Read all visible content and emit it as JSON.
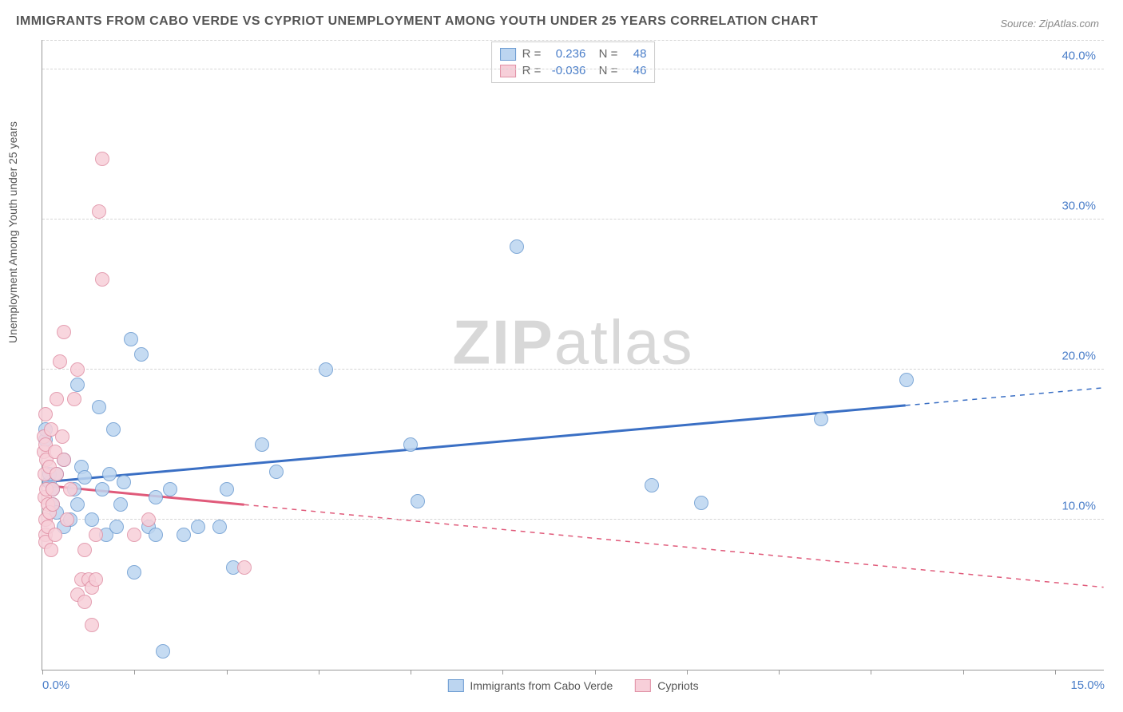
{
  "title": "IMMIGRANTS FROM CABO VERDE VS CYPRIOT UNEMPLOYMENT AMONG YOUTH UNDER 25 YEARS CORRELATION CHART",
  "source": "Source: ZipAtlas.com",
  "watermark_a": "ZIP",
  "watermark_b": "atlas",
  "chart": {
    "type": "scatter",
    "ylabel": "Unemployment Among Youth under 25 years",
    "xlim": [
      0,
      15
    ],
    "ylim": [
      0,
      42
    ],
    "xtick_positions": [
      0,
      1.3,
      2.6,
      3.9,
      5.2,
      6.5,
      7.8,
      9.1,
      10.4,
      11.7,
      13.0,
      14.3
    ],
    "xtick_labels": {
      "0": "0.0%",
      "15": "15.0%"
    },
    "ytick_positions": [
      10,
      20,
      30,
      40
    ],
    "ytick_labels": {
      "10": "10.0%",
      "20": "20.0%",
      "30": "30.0%",
      "40": "40.0%"
    },
    "grid_color": "#d5d5d5",
    "background_color": "#ffffff",
    "marker_radius": 9,
    "marker_border_width": 1,
    "series": [
      {
        "name": "Immigrants from Cabo Verde",
        "color_fill": "#bcd5f0",
        "color_border": "#6b9bd1",
        "line_color": "#3a6fc4",
        "line_width": 3,
        "R": "0.236",
        "N": "48",
        "trend": {
          "x1": 0,
          "y1": 12.5,
          "x2": 15,
          "y2": 18.8,
          "solid_until": 12.2
        },
        "points": [
          [
            0.05,
            15.3
          ],
          [
            0.05,
            16.0
          ],
          [
            0.1,
            12.5
          ],
          [
            0.1,
            13.0
          ],
          [
            0.15,
            11.0
          ],
          [
            0.15,
            12.0
          ],
          [
            0.2,
            13.0
          ],
          [
            0.2,
            10.5
          ],
          [
            0.3,
            9.5
          ],
          [
            0.3,
            14.0
          ],
          [
            0.4,
            10.0
          ],
          [
            0.45,
            12.0
          ],
          [
            0.5,
            11.0
          ],
          [
            0.5,
            19.0
          ],
          [
            0.55,
            13.5
          ],
          [
            0.6,
            12.8
          ],
          [
            0.7,
            10.0
          ],
          [
            0.8,
            17.5
          ],
          [
            0.85,
            12.0
          ],
          [
            0.9,
            9.0
          ],
          [
            0.95,
            13.0
          ],
          [
            1.0,
            16.0
          ],
          [
            1.05,
            9.5
          ],
          [
            1.1,
            11.0
          ],
          [
            1.15,
            12.5
          ],
          [
            1.25,
            22.0
          ],
          [
            1.3,
            6.5
          ],
          [
            1.4,
            21.0
          ],
          [
            1.5,
            9.5
          ],
          [
            1.6,
            9.0
          ],
          [
            1.6,
            11.5
          ],
          [
            1.7,
            1.2
          ],
          [
            1.8,
            12.0
          ],
          [
            2.0,
            9.0
          ],
          [
            2.2,
            9.5
          ],
          [
            2.5,
            9.5
          ],
          [
            2.6,
            12.0
          ],
          [
            2.7,
            6.8
          ],
          [
            3.1,
            15.0
          ],
          [
            3.3,
            13.2
          ],
          [
            4.0,
            20.0
          ],
          [
            5.2,
            15.0
          ],
          [
            5.3,
            11.2
          ],
          [
            6.7,
            28.2
          ],
          [
            8.6,
            12.3
          ],
          [
            9.3,
            11.1
          ],
          [
            11.0,
            16.7
          ],
          [
            12.2,
            19.3
          ]
        ]
      },
      {
        "name": "Cypriots",
        "color_fill": "#f7cfd9",
        "color_border": "#e090a5",
        "line_color": "#e05a7a",
        "line_width": 3,
        "R": "-0.036",
        "N": "46",
        "trend": {
          "x1": 0,
          "y1": 12.3,
          "x2": 15,
          "y2": 5.5,
          "solid_until": 2.85
        },
        "points": [
          [
            0.02,
            14.5
          ],
          [
            0.02,
            15.5
          ],
          [
            0.03,
            13.0
          ],
          [
            0.03,
            11.5
          ],
          [
            0.04,
            10.0
          ],
          [
            0.04,
            9.0
          ],
          [
            0.05,
            15.0
          ],
          [
            0.05,
            17.0
          ],
          [
            0.05,
            8.5
          ],
          [
            0.06,
            14.0
          ],
          [
            0.06,
            12.0
          ],
          [
            0.08,
            11.0
          ],
          [
            0.08,
            9.5
          ],
          [
            0.1,
            13.5
          ],
          [
            0.1,
            10.5
          ],
          [
            0.12,
            16.0
          ],
          [
            0.12,
            8.0
          ],
          [
            0.15,
            12.0
          ],
          [
            0.15,
            11.0
          ],
          [
            0.18,
            14.5
          ],
          [
            0.18,
            9.0
          ],
          [
            0.2,
            18.0
          ],
          [
            0.2,
            13.0
          ],
          [
            0.25,
            20.5
          ],
          [
            0.28,
            15.5
          ],
          [
            0.3,
            22.5
          ],
          [
            0.3,
            14.0
          ],
          [
            0.35,
            10.0
          ],
          [
            0.4,
            12.0
          ],
          [
            0.45,
            18.0
          ],
          [
            0.5,
            20.0
          ],
          [
            0.5,
            5.0
          ],
          [
            0.55,
            6.0
          ],
          [
            0.6,
            8.0
          ],
          [
            0.6,
            4.5
          ],
          [
            0.65,
            6.0
          ],
          [
            0.7,
            5.5
          ],
          [
            0.7,
            3.0
          ],
          [
            0.75,
            9.0
          ],
          [
            0.75,
            6.0
          ],
          [
            0.8,
            30.5
          ],
          [
            0.85,
            26.0
          ],
          [
            0.85,
            34.0
          ],
          [
            1.3,
            9.0
          ],
          [
            1.5,
            10.0
          ],
          [
            2.85,
            6.8
          ]
        ]
      }
    ],
    "bottom_legend": [
      {
        "label": "Immigrants from Cabo Verde",
        "fill": "#bcd5f0",
        "border": "#6b9bd1"
      },
      {
        "label": "Cypriots",
        "fill": "#f7cfd9",
        "border": "#e090a5"
      }
    ]
  }
}
